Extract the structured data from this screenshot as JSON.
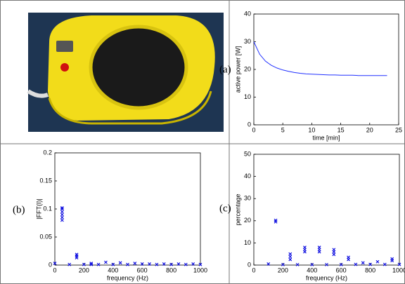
{
  "chart_data": [
    {
      "type": "line",
      "label": "(a)",
      "xlabel": "time [min]",
      "ylabel": "active power [W]",
      "xlim": [
        0,
        25
      ],
      "xticks": [
        0,
        5,
        10,
        15,
        20,
        25
      ],
      "ylim": [
        0,
        40
      ],
      "yticks": [
        0,
        10,
        20,
        30,
        40
      ],
      "color": "#2030ff",
      "x": [
        0,
        1,
        2,
        3,
        4,
        5,
        6,
        7,
        8,
        9,
        10,
        11,
        12,
        13,
        14,
        15,
        16,
        17,
        18,
        19,
        20,
        21,
        22,
        23
      ],
      "values": [
        30,
        25.5,
        23,
        21.5,
        20.5,
        19.8,
        19.3,
        18.9,
        18.6,
        18.4,
        18.3,
        18.2,
        18.1,
        18,
        18,
        17.9,
        17.9,
        17.9,
        17.8,
        17.8,
        17.8,
        17.8,
        17.8,
        17.8
      ]
    },
    {
      "type": "scatter",
      "label": "(b)",
      "xlabel": "frequency (Hz)",
      "ylabel": "|FFT(I)|",
      "xlim": [
        0,
        1000
      ],
      "xticks": [
        0,
        200,
        400,
        600,
        800,
        1000
      ],
      "ylim": [
        0,
        0.2
      ],
      "yticks": [
        0,
        0.05,
        0.1,
        0.15,
        0.2
      ],
      "color": "#1010e0",
      "x": [
        0,
        50,
        50,
        50,
        50,
        50,
        50,
        100,
        150,
        150,
        150,
        200,
        250,
        250,
        300,
        350,
        400,
        450,
        500,
        550,
        600,
        650,
        700,
        750,
        800,
        850,
        900,
        950,
        1000
      ],
      "values": [
        0.003,
        0.08,
        0.085,
        0.09,
        0.095,
        0.1,
        0.102,
        0.001,
        0.013,
        0.016,
        0.019,
        0.001,
        0.001,
        0.003,
        0.001,
        0.005,
        0.001,
        0.004,
        0.001,
        0.003,
        0.002,
        0.002,
        0.001,
        0.002,
        0.001,
        0.002,
        0.001,
        0.002,
        0.001
      ]
    },
    {
      "type": "scatter",
      "label": "(c)",
      "xlabel": "frequency (Hz)",
      "ylabel": "percentage",
      "xlim": [
        0,
        1000
      ],
      "xticks": [
        0,
        200,
        400,
        600,
        800,
        1000
      ],
      "ylim": [
        0,
        50
      ],
      "yticks": [
        0,
        10,
        20,
        30,
        40,
        50
      ],
      "color": "#1010e0",
      "x": [
        100,
        150,
        150,
        200,
        250,
        250,
        250,
        300,
        350,
        350,
        350,
        400,
        450,
        450,
        450,
        500,
        550,
        550,
        550,
        600,
        650,
        650,
        700,
        750,
        800,
        850,
        900,
        950,
        950,
        1000
      ],
      "values": [
        0.5,
        19.5,
        20.2,
        0.2,
        2.5,
        3.8,
        5,
        0.2,
        6,
        7,
        8,
        0.2,
        6,
        7,
        8,
        0.2,
        4.8,
        6,
        7,
        0.2,
        2.5,
        3.5,
        0.3,
        1,
        0.3,
        1.5,
        0.3,
        2,
        2.8,
        0.3
      ]
    }
  ]
}
